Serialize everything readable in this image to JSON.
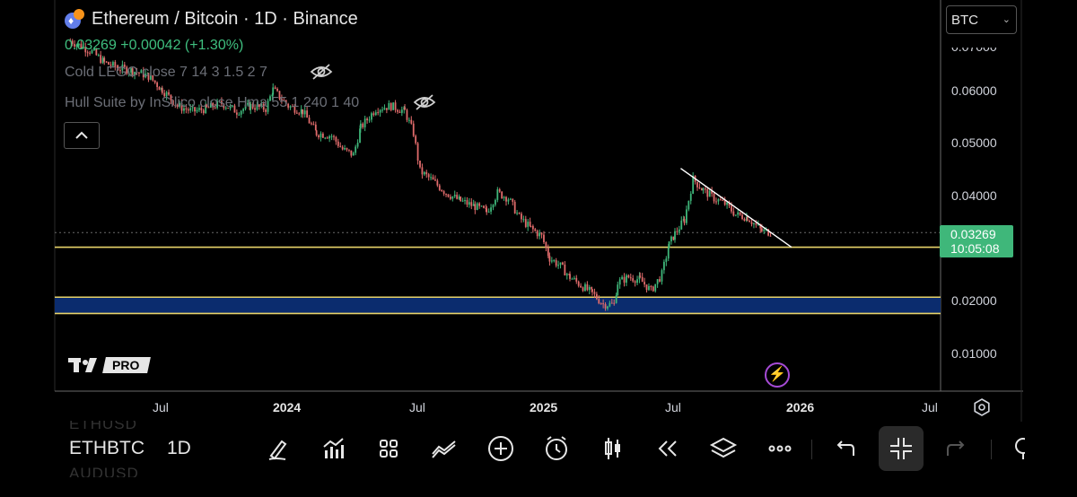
{
  "header": {
    "title": "Ethereum / Bitcoin · 1D · Binance",
    "price_line": "0.03269 +0.00042 (+1.30%)",
    "indicator_1": "Cold LEGO close 7 14 3 1.5 2 7",
    "indicator_2": "Hull Suite by InSilico close Hma 55 1 240 1 40",
    "currency_select": "BTC"
  },
  "price_axis": {
    "labels": [
      "0.07000",
      "0.06000",
      "0.05000",
      "0.04000",
      "0.02000",
      "0.01000"
    ],
    "current_price": "0.03269",
    "countdown": "10:05:08"
  },
  "time_axis": {
    "labels": [
      "Jul",
      "2024",
      "Jul",
      "2025",
      "Jul",
      "2026",
      "Jul"
    ]
  },
  "branding": {
    "pro": "PRO"
  },
  "bottom_bar": {
    "symbol": "ETHBTC",
    "timeframe": "1D",
    "ghost_above": "ETHUSD",
    "ghost_below": "AUDUSD"
  },
  "colors": {
    "up": "#3fb77a",
    "down": "#e06b6b",
    "level_line": "#e8d36a",
    "support_zone": "#0b2c6e",
    "trendline": "#ffffff",
    "accent_purple": "#a64bd6"
  },
  "icons": [
    "eye-off-icon",
    "chevron-up-icon",
    "chevron-down-icon",
    "settings-icon",
    "brush-icon",
    "indicators-icon",
    "grid-icon",
    "compare-icon",
    "add-icon",
    "alarm-icon",
    "candles-icon",
    "replay-icon",
    "layers-icon",
    "more-icon",
    "undo-icon",
    "collapse-icon",
    "redo-icon",
    "lightning-icon"
  ],
  "chart_data": {
    "type": "line",
    "title": "Ethereum / Bitcoin · 1D · Binance",
    "x_tick_labels": [
      "Jul",
      "2024",
      "Jul",
      "2025",
      "Jul",
      "2026",
      "Jul"
    ],
    "y_tick_labels": [
      "0.07000",
      "0.06000",
      "0.05000",
      "0.04000",
      "0.02000",
      "0.01000"
    ],
    "ylim": [
      0.0035,
      0.0755
    ],
    "grid": false,
    "series": [
      {
        "values": [
          [
            "2023-04-15",
            0.068
          ],
          [
            "2023-05-15",
            0.066
          ],
          [
            "2023-06-01",
            0.064
          ],
          [
            "2023-06-20",
            0.063
          ],
          [
            "2023-07-10",
            0.0625
          ],
          [
            "2023-08-01",
            0.0615
          ],
          [
            "2023-08-20",
            0.059
          ],
          [
            "2023-09-10",
            0.056
          ],
          [
            "2023-10-01",
            0.055
          ],
          [
            "2023-10-20",
            0.0555
          ],
          [
            "2023-11-10",
            0.0565
          ],
          [
            "2023-12-01",
            0.055
          ],
          [
            "2023-12-20",
            0.056
          ],
          [
            "2024-01-10",
            0.0555
          ],
          [
            "2024-01-20",
            0.059
          ],
          [
            "2024-02-10",
            0.056
          ],
          [
            "2024-03-01",
            0.055
          ],
          [
            "2024-03-20",
            0.051
          ],
          [
            "2024-04-10",
            0.0505
          ],
          [
            "2024-04-25",
            0.048
          ],
          [
            "2024-05-10",
            0.047
          ],
          [
            "2024-05-20",
            0.052
          ],
          [
            "2024-06-10",
            0.0555
          ],
          [
            "2024-07-01",
            0.056
          ],
          [
            "2024-07-20",
            0.055
          ],
          [
            "2024-08-01",
            0.051
          ],
          [
            "2024-08-10",
            0.044
          ],
          [
            "2024-08-25",
            0.0425
          ],
          [
            "2024-09-15",
            0.04
          ],
          [
            "2024-10-05",
            0.0385
          ],
          [
            "2024-10-25",
            0.0375
          ],
          [
            "2024-11-10",
            0.0365
          ],
          [
            "2024-11-25",
            0.04
          ],
          [
            "2024-12-10",
            0.039
          ],
          [
            "2024-12-25",
            0.0355
          ],
          [
            "2025-01-10",
            0.0335
          ],
          [
            "2025-01-25",
            0.032
          ],
          [
            "2025-02-05",
            0.028
          ],
          [
            "2025-02-20",
            0.0265
          ],
          [
            "2025-03-05",
            0.0245
          ],
          [
            "2025-03-20",
            0.023
          ],
          [
            "2025-04-05",
            0.0215
          ],
          [
            "2025-04-20",
            0.0195
          ],
          [
            "2025-05-05",
            0.0195
          ],
          [
            "2025-05-10",
            0.0235
          ],
          [
            "2025-05-25",
            0.0245
          ],
          [
            "2025-06-10",
            0.024
          ],
          [
            "2025-06-25",
            0.022
          ],
          [
            "2025-07-10",
            0.025
          ],
          [
            "2025-07-20",
            0.0305
          ],
          [
            "2025-07-28",
            0.0325
          ],
          [
            "2025-08-10",
            0.035
          ],
          [
            "2025-08-22",
            0.0425
          ],
          [
            "2025-09-05",
            0.0405
          ],
          [
            "2025-09-20",
            0.039
          ],
          [
            "2025-10-05",
            0.038
          ],
          [
            "2025-10-20",
            0.036
          ],
          [
            "2025-11-05",
            0.0355
          ],
          [
            "2025-11-25",
            0.033
          ],
          [
            "2025-12-10",
            0.03269
          ]
        ]
      }
    ],
    "annotations": {
      "trendline": [
        [
          "2025-08-05",
          0.0445
        ],
        [
          "2026-01-05",
          0.03
        ]
      ],
      "horizontal_levels": [
        0.03,
        0.0208,
        0.0178
      ],
      "support_zone": [
        0.0178,
        0.0208
      ],
      "last_price": 0.03269
    }
  }
}
